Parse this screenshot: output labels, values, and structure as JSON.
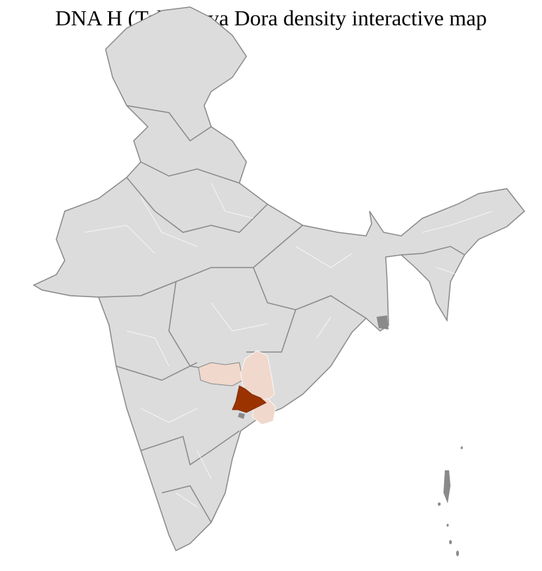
{
  "title": "DNA H (Teli) Koya Dora density interactive map",
  "colors": {
    "land": "#dcdcdc",
    "district_border": "#ffffff",
    "state_border": "#8a8a8a",
    "low_density": "#f0d8cc",
    "high_density": "#9a3300"
  }
}
